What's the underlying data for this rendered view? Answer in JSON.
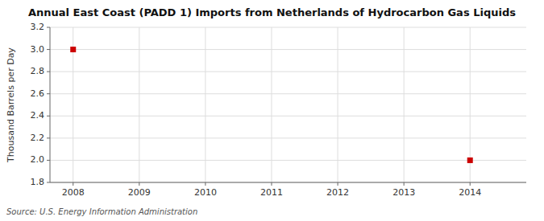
{
  "chart_data": {
    "type": "scatter",
    "title": "Annual East Coast (PADD 1) Imports from Netherlands of Hydrocarbon Gas Liquids",
    "y_label": "Thousand Barrels per Day",
    "source": "Source: U.S. Energy Information Administration",
    "x": [
      2008,
      2014
    ],
    "values": [
      3.0,
      2.0
    ],
    "color": "#cc0000",
    "marker": "square",
    "xlim": [
      2007.65,
      2014.85
    ],
    "xticks": [
      2008,
      2009,
      2010,
      2011,
      2012,
      2013,
      2014
    ],
    "ylim": [
      1.8,
      3.2
    ],
    "yticks": [
      1.8,
      {
        "value": 2.0,
        "label": "2.0"
      },
      2.2,
      2.4,
      2.6,
      2.8,
      {
        "value": 3.0,
        "label": "3.0"
      },
      3.2
    ],
    "grid": true
  }
}
